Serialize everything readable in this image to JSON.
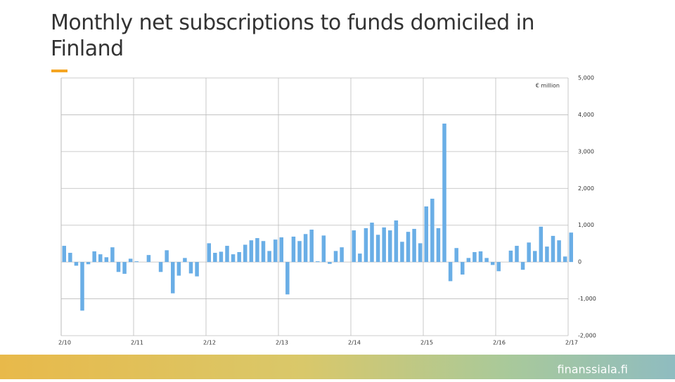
{
  "chart_data": {
    "type": "bar",
    "title": "Monthly net subscriptions to funds domiciled in Finland",
    "unit_label": "€ million",
    "footer": "finanssiala.fi",
    "color": "#6aaee6",
    "categories": [
      "2/10",
      null,
      null,
      null,
      null,
      null,
      null,
      null,
      null,
      null,
      null,
      null,
      "2/11",
      null,
      null,
      null,
      null,
      null,
      null,
      null,
      null,
      null,
      null,
      null,
      "2/12",
      null,
      null,
      null,
      null,
      null,
      null,
      null,
      null,
      null,
      null,
      null,
      "2/13",
      null,
      null,
      null,
      null,
      null,
      null,
      null,
      null,
      null,
      null,
      null,
      "2/14",
      null,
      null,
      null,
      null,
      null,
      null,
      null,
      null,
      null,
      null,
      null,
      "2/15",
      null,
      null,
      null,
      null,
      null,
      null,
      null,
      null,
      null,
      null,
      null,
      "2/16",
      null,
      null,
      null,
      null,
      null,
      null,
      null,
      null,
      null,
      null,
      null,
      "2/17"
    ],
    "values": [
      440,
      250,
      -100,
      -1320,
      -60,
      290,
      210,
      130,
      400,
      -270,
      -320,
      90,
      20,
      0,
      190,
      0,
      -270,
      320,
      -850,
      -370,
      110,
      -310,
      -390,
      0,
      510,
      250,
      280,
      440,
      210,
      270,
      470,
      590,
      650,
      570,
      300,
      610,
      670,
      -880,
      690,
      570,
      760,
      880,
      20,
      720,
      -50,
      300,
      400,
      0,
      860,
      230,
      920,
      1070,
      740,
      940,
      860,
      1130,
      550,
      820,
      900,
      510,
      1510,
      1720,
      920,
      3760,
      -520,
      380,
      -340,
      110,
      270,
      290,
      110,
      -80,
      -250,
      0,
      310,
      440,
      -210,
      530,
      300,
      960,
      420,
      710,
      590,
      150,
      800
    ],
    "ylim": [
      -2000,
      5000
    ],
    "yticks": [
      {
        "value": -2000,
        "label": "-2,000"
      },
      {
        "value": -1000,
        "label": "-1,000"
      },
      0,
      {
        "value": 1000,
        "label": "1,000"
      },
      {
        "value": 2000,
        "label": "2,000"
      },
      {
        "value": 3000,
        "label": "3,000"
      },
      {
        "value": 4000,
        "label": "4,000"
      },
      {
        "value": 5000,
        "label": "5,000"
      }
    ],
    "grid": true
  }
}
